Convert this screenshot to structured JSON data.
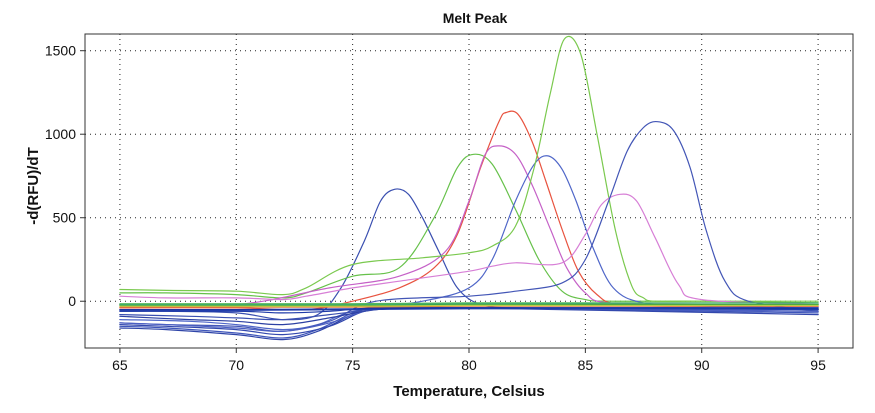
{
  "chart_data": {
    "type": "line",
    "title": "Melt Peak",
    "xlabel": "Temperature, Celsius",
    "ylabel": "-d(RFU)/dT",
    "xlim": [
      63.5,
      96.5
    ],
    "ylim": [
      -280,
      1600
    ],
    "xticks": [
      "65",
      "70",
      "75",
      "80",
      "85",
      "90",
      "95"
    ],
    "yticks": [
      "0",
      "500",
      "1000",
      "1500"
    ],
    "grid": true,
    "series": [
      {
        "color": "#3a4fb0",
        "x": [
          65,
          67,
          70,
          72,
          73.5,
          74.5,
          75.5,
          76.2,
          76.8,
          77.4,
          78,
          78.7,
          79.5,
          80.5,
          82,
          85,
          90,
          95
        ],
        "y": [
          -60,
          -60,
          -70,
          -110,
          -80,
          80,
          360,
          600,
          670,
          640,
          500,
          300,
          80,
          -20,
          -40,
          -40,
          -40,
          -50
        ]
      },
      {
        "color": "#66c14a",
        "x": [
          65,
          67,
          70,
          72,
          73,
          75,
          77,
          78.5,
          79.5,
          80.2,
          81,
          82,
          83,
          84,
          85,
          86,
          90,
          95
        ],
        "y": [
          50,
          50,
          40,
          20,
          50,
          150,
          200,
          500,
          800,
          880,
          820,
          550,
          250,
          60,
          10,
          0,
          0,
          -10
        ]
      },
      {
        "color": "#e8533f",
        "x": [
          65,
          70,
          73,
          75,
          77,
          78.5,
          79.5,
          80.5,
          81.3,
          81.6,
          82.1,
          82.7,
          83.3,
          84,
          84.7,
          85.5,
          86.5,
          90,
          95
        ],
        "y": [
          -40,
          -40,
          -50,
          0,
          80,
          200,
          400,
          800,
          1080,
          1130,
          1120,
          960,
          720,
          430,
          180,
          40,
          -20,
          -30,
          -30
        ]
      },
      {
        "color": "#c561c7",
        "x": [
          65,
          70,
          74,
          77,
          79,
          80,
          80.7,
          81.3,
          82,
          82.7,
          83.5,
          84.2,
          85,
          86,
          90,
          95
        ],
        "y": [
          -20,
          -20,
          80,
          150,
          300,
          600,
          880,
          930,
          880,
          700,
          430,
          200,
          50,
          -10,
          -20,
          -30
        ]
      },
      {
        "color": "#4f66c8",
        "x": [
          65,
          68,
          70,
          72,
          73.5,
          75,
          78,
          80,
          81,
          82,
          82.8,
          83.4,
          84,
          84.6,
          85.3,
          86.2,
          87.5,
          90,
          95
        ],
        "y": [
          -110,
          -120,
          -140,
          -170,
          -140,
          -60,
          0,
          80,
          250,
          600,
          820,
          870,
          790,
          600,
          330,
          80,
          -10,
          -30,
          -40
        ]
      },
      {
        "color": "#7ac94e",
        "x": [
          65,
          67,
          70,
          72,
          73,
          75,
          78,
          80,
          81,
          82,
          82.8,
          83.5,
          84.1,
          84.8,
          85.5,
          86.3,
          87,
          87.5,
          88,
          90,
          95
        ],
        "y": [
          70,
          65,
          60,
          40,
          80,
          220,
          260,
          290,
          330,
          450,
          800,
          1250,
          1570,
          1480,
          1000,
          420,
          90,
          20,
          0,
          0,
          0
        ]
      },
      {
        "color": "#d77fd6",
        "x": [
          65,
          67,
          70,
          72,
          73,
          75,
          77,
          80,
          81,
          82,
          84,
          85,
          85.7,
          86.5,
          87.2,
          88,
          89,
          90,
          95
        ],
        "y": [
          30,
          20,
          20,
          10,
          30,
          80,
          120,
          180,
          210,
          230,
          230,
          400,
          580,
          640,
          600,
          380,
          100,
          10,
          -20
        ]
      },
      {
        "color": "#4356b6",
        "x": [
          65,
          67,
          70,
          72,
          74,
          76,
          80,
          82,
          84,
          85,
          86,
          86.8,
          87.5,
          88.1,
          88.8,
          89.5,
          90.2,
          91,
          92,
          95
        ],
        "y": [
          -130,
          -140,
          -150,
          -180,
          -120,
          0,
          30,
          60,
          110,
          250,
          600,
          900,
          1040,
          1075,
          1020,
          800,
          420,
          120,
          0,
          -60
        ]
      },
      {
        "color": "#2f45a8",
        "x": [
          65,
          67,
          70,
          72,
          73.5,
          75,
          76,
          80,
          95
        ],
        "y": [
          -160,
          -170,
          -200,
          -230,
          -180,
          -80,
          -40,
          -40,
          -60
        ]
      },
      {
        "color": "#3e55ba",
        "x": [
          65,
          67,
          70,
          72,
          73.5,
          75,
          76,
          80,
          95
        ],
        "y": [
          -150,
          -160,
          -190,
          -220,
          -170,
          -70,
          -40,
          -40,
          -70
        ]
      },
      {
        "color": "#3348ad",
        "x": [
          65,
          67,
          70,
          72,
          74,
          75.5,
          77,
          80,
          95
        ],
        "y": [
          -140,
          -150,
          -170,
          -200,
          -150,
          -60,
          -40,
          -40,
          -80
        ]
      },
      {
        "color": "#4b5fc3",
        "x": [
          65,
          67,
          70,
          72,
          74,
          75.5,
          77,
          80,
          95
        ],
        "y": [
          -130,
          -140,
          -160,
          -180,
          -130,
          -60,
          -40,
          -40,
          -60
        ]
      },
      {
        "color": "#2c40a3",
        "x": [
          65,
          68,
          70,
          72,
          74,
          75.5,
          77,
          80,
          95
        ],
        "y": [
          -90,
          -110,
          -120,
          -140,
          -100,
          -60,
          -40,
          -40,
          -50
        ]
      },
      {
        "color": "#3a4fb0",
        "x": [
          65,
          68,
          70,
          72,
          74,
          76,
          78,
          80,
          95
        ],
        "y": [
          -80,
          -90,
          -100,
          -110,
          -80,
          -50,
          -40,
          -40,
          -40
        ]
      },
      {
        "color": "#1f3aa8",
        "x": [
          65,
          70,
          72,
          74,
          76,
          80,
          90,
          95
        ],
        "y": [
          -60,
          -60,
          -70,
          -60,
          -40,
          -40,
          -40,
          -40
        ]
      },
      {
        "color": "#2440b0",
        "x": [
          65,
          70,
          75,
          80,
          90,
          95
        ],
        "y": [
          -55,
          -55,
          -50,
          -45,
          -45,
          -50
        ]
      },
      {
        "color": "#1b35a0",
        "x": [
          65,
          70,
          75,
          80,
          90,
          95
        ],
        "y": [
          -50,
          -50,
          -45,
          -40,
          -40,
          -45
        ]
      },
      {
        "color": "#e07a3a",
        "x": [
          65,
          70,
          75,
          80,
          90,
          95
        ],
        "y": [
          -35,
          -35,
          -35,
          -30,
          -30,
          -30
        ]
      },
      {
        "color": "#2e9c3e",
        "x": [
          65,
          70,
          75,
          80,
          90,
          95
        ],
        "y": [
          -25,
          -25,
          -25,
          -20,
          -20,
          -20
        ]
      },
      {
        "color": "#58b85a",
        "x": [
          65,
          70,
          75,
          80,
          90,
          95
        ],
        "y": [
          -15,
          -15,
          -15,
          -10,
          -10,
          -10
        ]
      },
      {
        "color": "#b9cf46",
        "x": [
          65,
          70,
          75,
          80,
          90,
          95
        ],
        "y": [
          -30,
          -30,
          -30,
          -25,
          -25,
          -25
        ]
      },
      {
        "color": "#3cae6a",
        "x": [
          65,
          70,
          75,
          80,
          90,
          95
        ],
        "y": [
          -20,
          -20,
          -20,
          -15,
          -12,
          -12
        ]
      }
    ]
  }
}
